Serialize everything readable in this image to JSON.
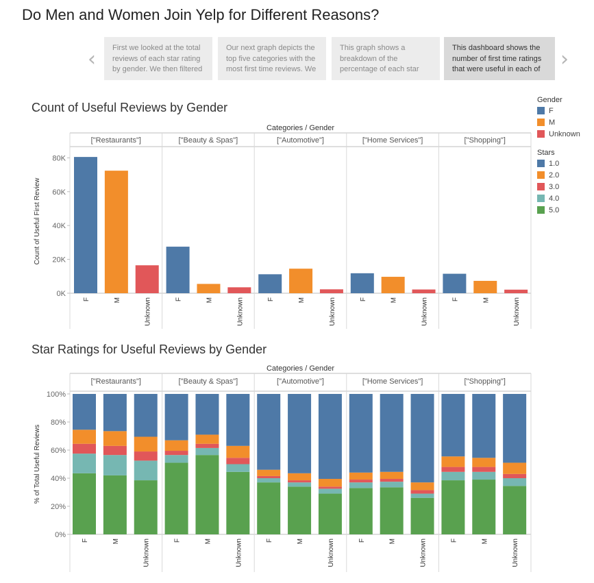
{
  "page_title": "Do Men and Women Join Yelp for Different Reasons?",
  "story": {
    "prev_arrow": "‹",
    "next_arrow": "›",
    "points": [
      {
        "text": "First we looked at  the total reviews of each star rating by gender. We then filtered",
        "active": false
      },
      {
        "text": "Our next graph depicts the top five categories with the most first time reviews. We",
        "active": false
      },
      {
        "text": "This graph shows a breakdown of the percentage of each star",
        "active": false
      },
      {
        "text": "This dashboard shows the number of first time ratings that were useful in each of",
        "active": true
      }
    ]
  },
  "legend": {
    "gender_title": "Gender",
    "gender_items": [
      {
        "label": "F",
        "color": "#4e79a7"
      },
      {
        "label": "M",
        "color": "#f28e2b"
      },
      {
        "label": "Unknown",
        "color": "#e15759"
      }
    ],
    "stars_title": "Stars",
    "stars_items": [
      {
        "label": "1.0",
        "color": "#4e79a7"
      },
      {
        "label": "2.0",
        "color": "#f28e2b"
      },
      {
        "label": "3.0",
        "color": "#e15759"
      },
      {
        "label": "4.0",
        "color": "#76b7b2"
      },
      {
        "label": "5.0",
        "color": "#59a14f"
      }
    ]
  },
  "chart_data": [
    {
      "type": "bar",
      "title": "Count of Useful Reviews by Gender",
      "header": "Categories / Gender",
      "ylabel": "Count of Useful First Review",
      "groups": [
        "[\"Restaurants\"]",
        "[\"Beauty & Spas\"]",
        "[\"Automotive\"]",
        "[\"Home Services\"]",
        "[\"Shopping\"]"
      ],
      "categories": [
        "F",
        "M",
        "Unknown"
      ],
      "colors": {
        "F": "#4e79a7",
        "M": "#f28e2b",
        "Unknown": "#e15759"
      },
      "values": [
        [
          80500,
          72400,
          16500
        ],
        [
          27500,
          5500,
          3500
        ],
        [
          11200,
          14500,
          2300
        ],
        [
          11800,
          9700,
          2200
        ],
        [
          11500,
          7300,
          2100
        ]
      ],
      "ylim": [
        0,
        85000
      ],
      "yticks": [
        0,
        20000,
        40000,
        60000,
        80000
      ],
      "ytick_labels": [
        "0K",
        "20K",
        "40K",
        "60K",
        "80K"
      ],
      "grid": false
    },
    {
      "type": "bar",
      "stacked": true,
      "title": "Star Ratings for Useful Reviews by Gender",
      "header": "Categories / Gender",
      "ylabel": "% of Total Useful Reviews",
      "groups": [
        "[\"Restaurants\"]",
        "[\"Beauty & Spas\"]",
        "[\"Automotive\"]",
        "[\"Home Services\"]",
        "[\"Shopping\"]"
      ],
      "categories": [
        "F",
        "M",
        "Unknown"
      ],
      "stack_order": [
        "5.0",
        "4.0",
        "3.0",
        "2.0",
        "1.0"
      ],
      "colors": {
        "1.0": "#4e79a7",
        "2.0": "#f28e2b",
        "3.0": "#e15759",
        "4.0": "#76b7b2",
        "5.0": "#59a14f"
      },
      "series": [
        {
          "name": "5.0",
          "values": [
            [
              43.5,
              42,
              38.5
            ],
            [
              51,
              56.5,
              44.5
            ],
            [
              37,
              34,
              29
            ],
            [
              33,
              33.5,
              26
            ],
            [
              38.5,
              39,
              34.5
            ]
          ]
        },
        {
          "name": "4.0",
          "values": [
            [
              14,
              14.5,
              14
            ],
            [
              5.5,
              5,
              5.5
            ],
            [
              3,
              3,
              3.5
            ],
            [
              4,
              4,
              3
            ],
            [
              6,
              5.5,
              5.5
            ]
          ]
        },
        {
          "name": "3.0",
          "values": [
            [
              7,
              6.5,
              6.5
            ],
            [
              3,
              3,
              4.5
            ],
            [
              1.5,
              1.5,
              1.5
            ],
            [
              2,
              2,
              2.5
            ],
            [
              3.5,
              3.5,
              3
            ]
          ]
        },
        {
          "name": "2.0",
          "values": [
            [
              10,
              10.5,
              10.5
            ],
            [
              7.5,
              6.5,
              8.5
            ],
            [
              4.5,
              5,
              5.5
            ],
            [
              5,
              5,
              5.5
            ],
            [
              7.5,
              6.5,
              8
            ]
          ]
        },
        {
          "name": "1.0",
          "values": [
            [
              25.5,
              26.5,
              30.5
            ],
            [
              33,
              29,
              37
            ],
            [
              54,
              56.5,
              60.5
            ],
            [
              56,
              55.5,
              63
            ],
            [
              44.5,
              45.5,
              49
            ]
          ]
        }
      ],
      "ylim": [
        0,
        100
      ],
      "yticks": [
        0,
        20,
        40,
        60,
        80,
        100
      ],
      "ytick_labels": [
        "0%",
        "20%",
        "40%",
        "60%",
        "80%",
        "100%"
      ],
      "grid": false
    }
  ]
}
